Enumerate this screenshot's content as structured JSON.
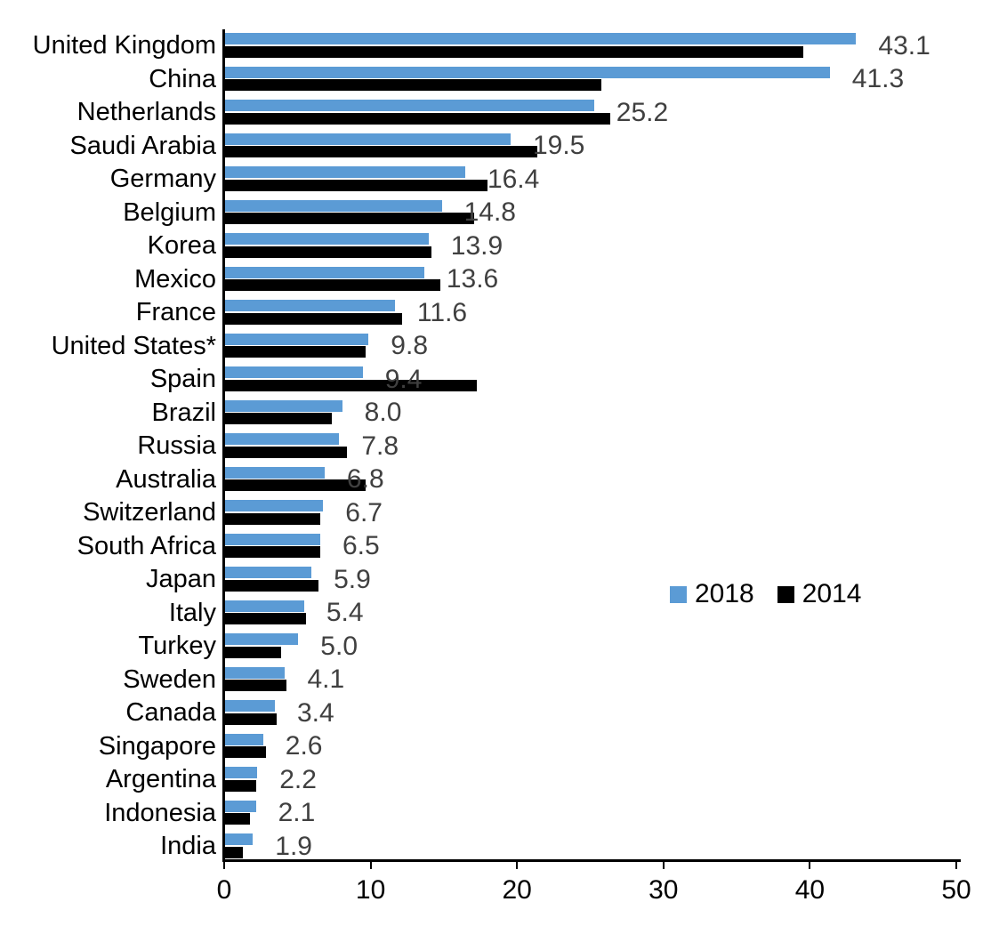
{
  "chart_data": {
    "type": "bar",
    "orientation": "horizontal",
    "title": "",
    "xlabel": "",
    "ylabel": "",
    "categories": [
      "United Kingdom",
      "China",
      "Netherlands",
      "Saudi Arabia",
      "Germany",
      "Belgium",
      "Korea",
      "Mexico",
      "France",
      "United States*",
      "Spain",
      "Brazil",
      "Russia",
      "Australia",
      "Switzerland",
      "South Africa",
      "Japan",
      "Italy",
      "Turkey",
      "Sweden",
      "Canada",
      "Singapore",
      "Argentina",
      "Indonesia",
      "India"
    ],
    "series": [
      {
        "name": "2018",
        "color": "#5B9BD5",
        "data_labels_shown": true,
        "values": [
          43.1,
          41.3,
          25.2,
          19.5,
          16.4,
          14.8,
          13.9,
          13.6,
          11.6,
          9.8,
          9.4,
          8.0,
          7.8,
          6.8,
          6.7,
          6.5,
          5.9,
          5.4,
          5.0,
          4.1,
          3.4,
          2.6,
          2.2,
          2.1,
          1.9
        ]
      },
      {
        "name": "2014",
        "color": "#000000",
        "data_labels_shown": false,
        "values": [
          39.5,
          25.7,
          26.3,
          21.3,
          17.9,
          17.0,
          14.1,
          14.7,
          12.1,
          9.6,
          17.2,
          7.3,
          8.3,
          9.6,
          6.5,
          6.5,
          6.4,
          5.5,
          3.8,
          4.2,
          3.5,
          2.8,
          2.1,
          1.7,
          1.2
        ]
      }
    ],
    "xlim": [
      0,
      50
    ],
    "x_ticks": [
      "0",
      "10",
      "20",
      "30",
      "40",
      "50"
    ],
    "grid": false,
    "legend_position": "center-right",
    "data_label_color": "#404040",
    "axis_color": "#000000"
  }
}
